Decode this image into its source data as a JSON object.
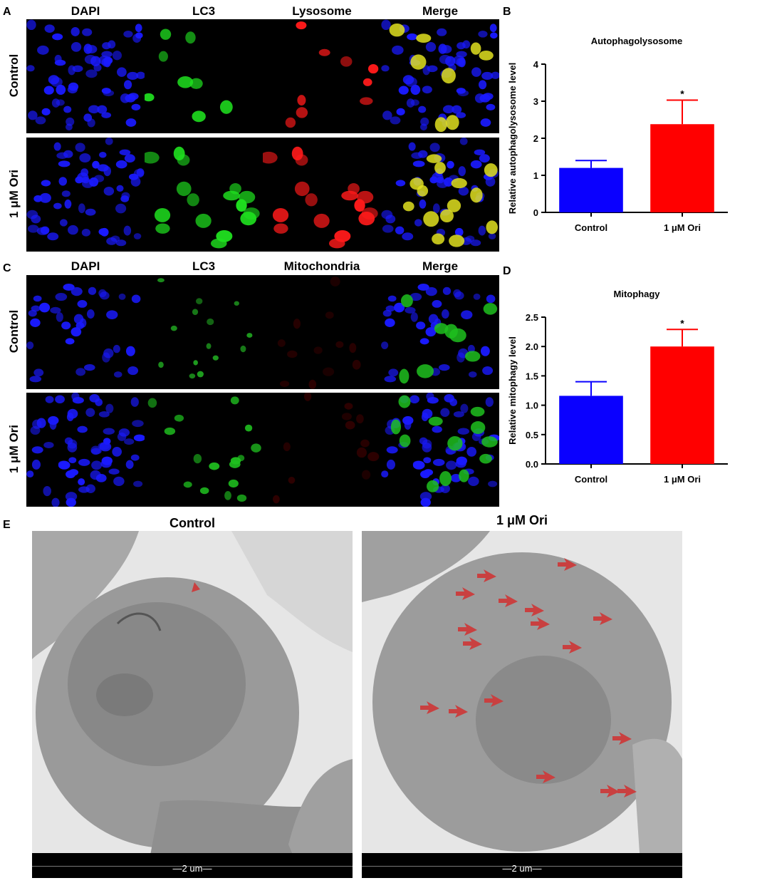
{
  "panels": {
    "A": "A",
    "B": "B",
    "C": "C",
    "D": "D",
    "E": "E"
  },
  "panel_A": {
    "columns": [
      "DAPI",
      "LC3",
      "Lysosome",
      "Merge"
    ],
    "rows": [
      "Control",
      "1 μM Ori"
    ]
  },
  "panel_C": {
    "columns": [
      "DAPI",
      "LC3",
      "Mitochondria",
      "Merge"
    ],
    "rows": [
      "Control",
      "1 μM Ori"
    ]
  },
  "panel_E": {
    "titles": [
      "Control",
      "1 μM Ori"
    ],
    "scale_label": "2 um"
  },
  "colors": {
    "control_bar": "#0a00ff",
    "ori_bar": "#ff0000",
    "dapi": "#1a1aff",
    "lc3": "#1fe01f",
    "lysosome": "#ff1a1a",
    "merge_yellow": "#e0e020",
    "em_arrow": "#c94040"
  },
  "chart_data": [
    {
      "type": "bar",
      "title": "Autophagolysosome",
      "ylabel": "Relative autophagolysosome level",
      "categories": [
        "Control",
        "1 μM Ori"
      ],
      "values": [
        1.2,
        2.38
      ],
      "errors": [
        0.2,
        0.65
      ],
      "significance": [
        "",
        "*"
      ],
      "ylim": [
        0,
        4
      ],
      "yticks": [
        "0",
        "1",
        "2",
        "3",
        "4"
      ],
      "ytick_values": [
        0,
        1,
        2,
        3,
        4
      ]
    },
    {
      "type": "bar",
      "title": "Mitophagy",
      "ylabel": "Relative mitophagy level",
      "categories": [
        "Control",
        "1 μM Ori"
      ],
      "values": [
        1.16,
        2.0
      ],
      "errors": [
        0.24,
        0.29
      ],
      "significance": [
        "",
        "*"
      ],
      "ylim": [
        0,
        2.5
      ],
      "yticks": [
        "0.0",
        "0.5",
        "1.0",
        "1.5",
        "2.0",
        "2.5"
      ],
      "ytick_values": [
        0,
        0.5,
        1.0,
        1.5,
        2.0,
        2.5
      ]
    }
  ]
}
